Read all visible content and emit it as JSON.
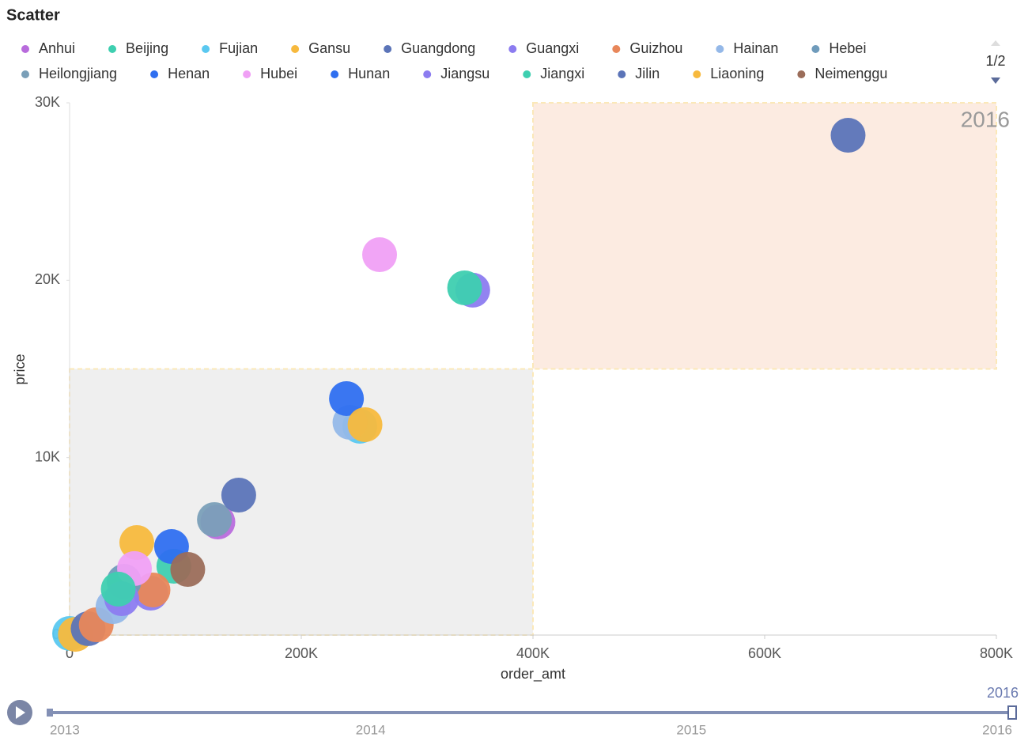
{
  "chart_data": {
    "type": "scatter",
    "title": "Scatter",
    "x_label": "order_amt",
    "y_label": "price",
    "xlim": [
      0,
      800000
    ],
    "ylim": [
      0,
      30000
    ],
    "xticks": [
      0,
      {
        "value": 200000,
        "label": "200K"
      },
      {
        "value": 400000,
        "label": "400K"
      },
      {
        "value": 600000,
        "label": "600K"
      },
      {
        "value": 800000,
        "label": "800K"
      }
    ],
    "yticks": [
      0,
      {
        "value": 10000,
        "label": "10K"
      },
      {
        "value": 20000,
        "label": "20K"
      },
      {
        "value": 30000,
        "label": "30K"
      }
    ],
    "regions": [
      {
        "xlim": [
          0,
          400000
        ],
        "ylim": [
          0,
          15000
        ],
        "color": "#efefef"
      },
      {
        "xlim": [
          400000,
          800000
        ],
        "ylim": [
          15000,
          30000
        ],
        "color": "#fcebe1"
      }
    ],
    "legend_page": "1/2",
    "timeline": {
      "labels": [
        "2013",
        "2014",
        "2015",
        "2016"
      ],
      "current": "2016"
    },
    "series": [
      {
        "name": "Anhui",
        "color": "#b86bdc",
        "x": [
          128000
        ],
        "values": [
          6375
        ]
      },
      {
        "name": "Beijing",
        "color": "#3ecfb0",
        "x": [
          90000
        ],
        "values": [
          3880
        ]
      },
      {
        "name": "Fujian",
        "color": "#5ac8f0",
        "x": [
          250500,
          0
        ],
        "values": [
          11770,
          90
        ]
      },
      {
        "name": "Gansu",
        "color": "#f7b93d",
        "x": [
          58000,
          5000
        ],
        "values": [
          5215,
          40
        ]
      },
      {
        "name": "Guangdong",
        "color": "#5b74b8",
        "x": [
          672000,
          16000
        ],
        "values": [
          28170,
          360
        ]
      },
      {
        "name": "Guangxi",
        "color": "#8c7cf0",
        "x": [
          70000
        ],
        "values": [
          2360
        ]
      },
      {
        "name": "Guizhou",
        "color": "#e8875a",
        "x": [
          72000,
          23000
        ],
        "values": [
          2540,
          580
        ]
      },
      {
        "name": "Hainan",
        "color": "#94b8e8",
        "x": [
          242000,
          37500
        ],
        "values": [
          11990,
          1600
        ]
      },
      {
        "name": "Hebei",
        "color": "#6f9bbb",
        "x": [
          47000
        ],
        "values": [
          3030
        ]
      },
      {
        "name": "Heilongjiang",
        "color": "#7a9fb8",
        "x": [
          125000
        ],
        "values": [
          6510
        ]
      },
      {
        "name": "Henan",
        "color": "#2f6ff0",
        "x": [
          239000
        ],
        "values": [
          13330
        ]
      },
      {
        "name": "Hubei",
        "color": "#f0a0f5",
        "x": [
          267600,
          56000
        ],
        "values": [
          21440,
          3750
        ]
      },
      {
        "name": "Hunan",
        "color": "#2f6ff0",
        "x": [
          88000
        ],
        "values": [
          4990
        ]
      },
      {
        "name": "Jiangsu",
        "color": "#8c7cf0",
        "x": [
          348000,
          45000
        ],
        "values": [
          19440,
          2050
        ]
      },
      {
        "name": "Jiangxi",
        "color": "#3ecfb0",
        "x": [
          341000,
          42000
        ],
        "values": [
          19570,
          2590
        ]
      },
      {
        "name": "Jilin",
        "color": "#5b74b8",
        "x": [
          146000
        ],
        "values": [
          7890
        ]
      },
      {
        "name": "Liaoning",
        "color": "#f7b93d",
        "x": [
          255000
        ],
        "values": [
          11860
        ]
      },
      {
        "name": "Neimenggu",
        "color": "#9b6d5a",
        "x": [
          102000
        ],
        "values": [
          3700
        ]
      }
    ]
  }
}
